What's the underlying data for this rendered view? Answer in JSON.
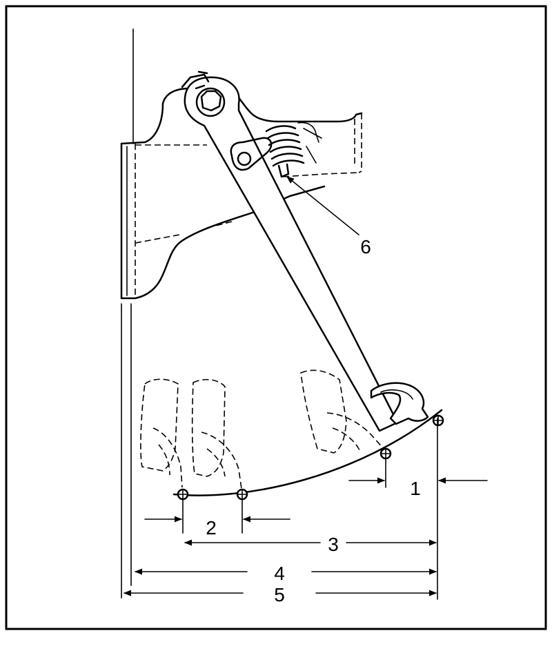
{
  "callouts": {
    "c1": "1",
    "c2": "2",
    "c3": "3",
    "c4": "4",
    "c5": "5",
    "c6": "6"
  }
}
